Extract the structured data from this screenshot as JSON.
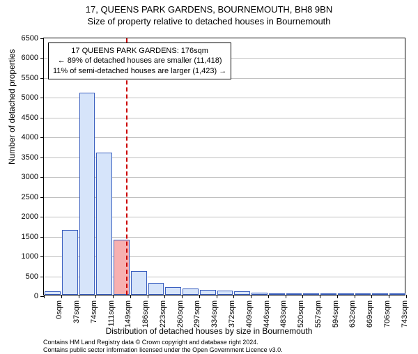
{
  "title_line1": "17, QUEENS PARK GARDENS, BOURNEMOUTH, BH8 9BN",
  "title_line2": "Size of property relative to detached houses in Bournemouth",
  "y_axis_label": "Number of detached properties",
  "x_axis_label": "Distribution of detached houses by size in Bournemouth",
  "attribution_line1": "Contains HM Land Registry data © Crown copyright and database right 2024.",
  "attribution_line2": "Contains public sector information licensed under the Open Government Licence v3.0.",
  "chart": {
    "type": "histogram",
    "background_color": "#ffffff",
    "grid_color": "#bfbfbf",
    "border_color": "#000000",
    "bar_fill": "#d6e4fa",
    "bar_stroke": "#3a5fbf",
    "ref_line_color": "#cc0000",
    "highlight_bar_index": 4,
    "highlight_bar_fill": "#f7b0b0",
    "ylim": [
      0,
      6500
    ],
    "ytick_step": 500,
    "x_categories": [
      "0sqm",
      "37sqm",
      "74sqm",
      "111sqm",
      "149sqm",
      "186sqm",
      "223sqm",
      "260sqm",
      "297sqm",
      "334sqm",
      "372sqm",
      "409sqm",
      "446sqm",
      "483sqm",
      "520sqm",
      "557sqm",
      "594sqm",
      "632sqm",
      "669sqm",
      "706sqm",
      "743sqm"
    ],
    "values": [
      90,
      1630,
      5100,
      3580,
      1380,
      590,
      300,
      190,
      150,
      120,
      110,
      80,
      60,
      20,
      15,
      10,
      10,
      8,
      5,
      5,
      2
    ],
    "bar_width_ratio": 0.92,
    "ref_line_position": 4.76,
    "label_fontsize": 11,
    "title_fontsize": 13
  },
  "info_box": {
    "line1": "17 QUEENS PARK GARDENS: 176sqm",
    "line2": "← 89% of detached houses are smaller (11,418)",
    "line3": "11% of semi-detached houses are larger (1,423) →"
  }
}
